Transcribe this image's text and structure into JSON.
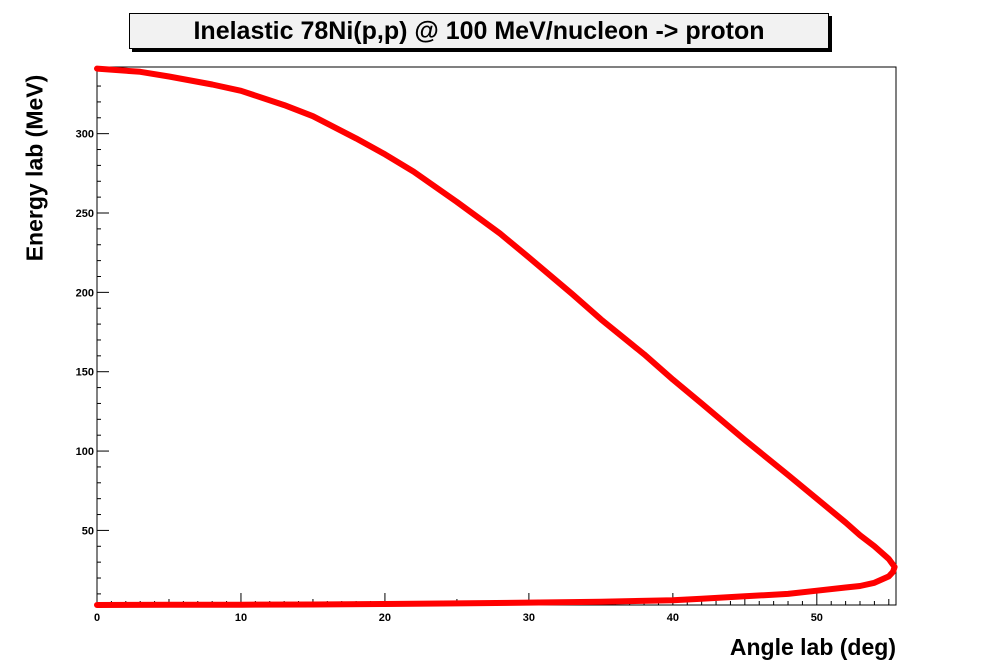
{
  "chart_data": {
    "type": "line",
    "title": "Inelastic 78Ni(p,p) @ 100 MeV/nucleon -> proton",
    "xlabel": "Angle lab (deg)",
    "ylabel": "Energy lab (MeV)",
    "xlim": [
      0,
      55.5
    ],
    "ylim": [
      3,
      342
    ],
    "x_ticks": [
      0,
      10,
      20,
      30,
      40,
      50
    ],
    "y_ticks": [
      50,
      100,
      150,
      200,
      250,
      300
    ],
    "grid": false,
    "line_color": "#ff0000",
    "series": [
      {
        "x": [
          0,
          3,
          5,
          8,
          10,
          13,
          15,
          18,
          20,
          22,
          25,
          28,
          30,
          33,
          35,
          38,
          40,
          42,
          45,
          48,
          50,
          52,
          53,
          54,
          55,
          55.4,
          55.3,
          55,
          54,
          53,
          52,
          50,
          48,
          45,
          42,
          40,
          35,
          30,
          25,
          20,
          15,
          10,
          5,
          0
        ],
        "y": [
          341,
          339,
          336,
          331,
          327,
          318,
          311,
          297,
          287,
          276,
          257,
          237,
          222,
          199,
          183,
          161,
          145,
          130,
          107,
          85,
          70,
          55,
          47,
          40,
          32,
          27,
          24,
          21,
          17,
          15,
          14,
          12,
          10,
          8.5,
          7,
          6,
          5,
          4.5,
          4,
          3.6,
          3.3,
          3.2,
          3.1,
          3
        ]
      }
    ]
  }
}
